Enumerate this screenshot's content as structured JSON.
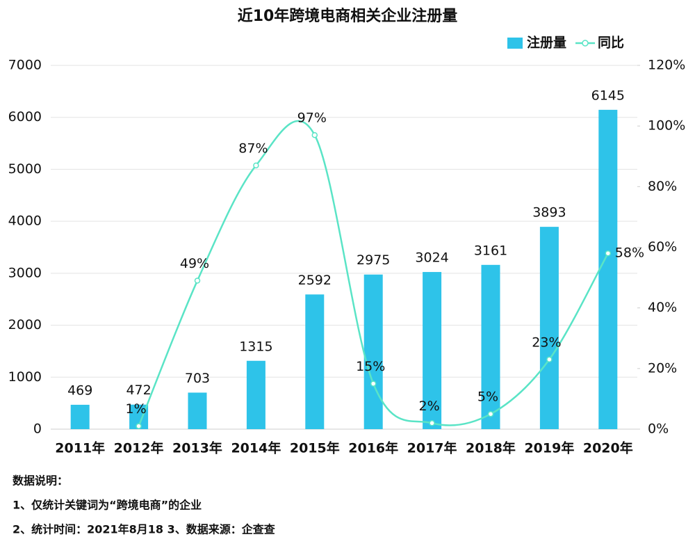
{
  "chart_data": {
    "type": "bar",
    "title": "近10年跨境电商相关企业注册量",
    "categories": [
      "2011年",
      "2012年",
      "2013年",
      "2014年",
      "2015年",
      "2016年",
      "2017年",
      "2018年",
      "2019年",
      "2020年"
    ],
    "series": [
      {
        "name": "注册量",
        "type": "bar",
        "color": "#2ec3e9",
        "values": [
          469,
          472,
          703,
          1315,
          2592,
          2975,
          3024,
          3161,
          3893,
          6145
        ]
      },
      {
        "name": "同比",
        "type": "line",
        "axis": "y2",
        "color": "#5ae4c6",
        "values": [
          null,
          1,
          49,
          87,
          97,
          15,
          2,
          5,
          23,
          58
        ],
        "value_labels": [
          null,
          "1%",
          "49%",
          "87%",
          "97%",
          "15%",
          "2%",
          "5%",
          "23%",
          "58%"
        ]
      }
    ],
    "ylim": [
      0,
      7000
    ],
    "yticks": [
      0,
      1000,
      2000,
      3000,
      4000,
      5000,
      6000,
      7000
    ],
    "y2lim": [
      0,
      120
    ],
    "y2ticks": [
      {
        "value": 0,
        "label": "0%"
      },
      {
        "value": 20,
        "label": "20%"
      },
      {
        "value": 40,
        "label": "40%"
      },
      {
        "value": 60,
        "label": "60%"
      },
      {
        "value": 80,
        "label": "80%"
      },
      {
        "value": 100,
        "label": "100%"
      },
      {
        "value": 120,
        "label": "120%"
      }
    ],
    "grid": true,
    "legend": "top-right",
    "notes": [
      "数据说明：",
      "1、仅统计关键词为“跨境电商”的企业",
      "2、统计时间：2021年8月18  3、数据来源：企查查"
    ]
  }
}
